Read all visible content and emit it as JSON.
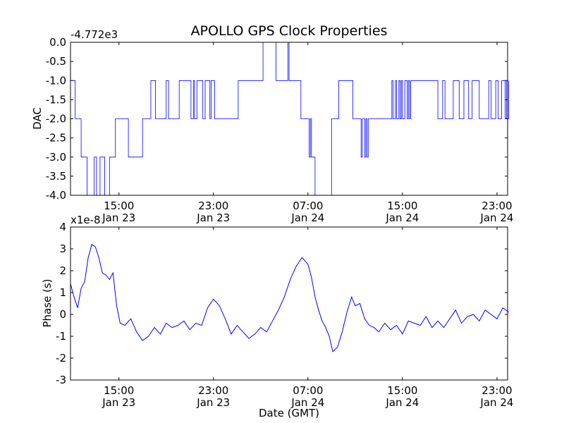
{
  "chart_data": [
    {
      "type": "line",
      "title": "APOLLO GPS Clock Properties",
      "ylabel": "DAC",
      "offset_label": "-4.772e3",
      "ylim": [
        -4.0,
        0.0
      ],
      "yticks": [
        "0.0",
        "-0.5",
        "-1.0",
        "-1.5",
        "-2.0",
        "-2.5",
        "-3.0",
        "-3.5",
        "-4.0"
      ],
      "xlim": [
        "Jan 23 10:55",
        "Jan 24 23:55"
      ],
      "xticks": [
        {
          "time": "15:00",
          "date": "Jan 23"
        },
        {
          "time": "23:00",
          "date": "Jan 23"
        },
        {
          "time": "07:00",
          "date": "Jan 24"
        },
        {
          "time": "15:00",
          "date": "Jan 24"
        },
        {
          "time": "23:00",
          "date": "Jan 24"
        }
      ],
      "color": "#0000ff",
      "series": [
        {
          "x_hours": [
            10.9,
            11.3,
            11.4,
            11.8,
            12.1,
            12.3,
            12.6,
            12.9,
            13.0,
            13.1,
            13.3,
            13.4,
            13.7,
            13.8,
            14.0,
            14.2,
            14.3,
            14.5,
            14.7,
            15.0,
            15.4,
            15.8,
            16.4,
            17.0,
            17.1,
            17.6,
            17.7,
            18.1,
            19.0,
            19.2,
            19.9,
            20.1,
            20.5,
            21.1,
            21.3,
            21.4,
            21.6,
            21.9,
            22.1,
            22.3,
            22.7,
            22.8,
            23.1,
            25.1,
            27.2,
            28.3,
            28.4,
            29.3,
            29.4,
            30.3,
            30.4,
            30.9,
            31.1,
            31.2,
            31.3,
            31.4,
            31.5,
            31.6,
            31.7,
            33.0,
            33.1,
            33.6,
            33.8,
            34.8,
            35.2,
            35.5,
            35.6,
            35.8,
            35.9,
            36.0,
            36.1,
            38.1,
            38.2,
            38.4,
            38.5,
            38.7,
            38.8,
            38.9,
            39.0,
            39.2,
            39.3,
            39.4,
            39.5,
            39.6,
            39.7,
            40.2,
            42.0,
            42.4,
            42.6,
            43.3,
            43.8,
            44.2,
            44.6,
            44.9,
            45.5,
            46.3,
            46.5,
            46.9,
            47.1,
            47.4,
            47.7,
            47.8,
            47.9,
            48.0
          ],
          "y": [
            -1.0,
            -2.0,
            -2.0,
            -3.0,
            -3.0,
            -4.0,
            -4.0,
            -3.0,
            -3.0,
            -4.0,
            -4.0,
            -3.0,
            -3.0,
            -4.0,
            -4.0,
            -3.0,
            -3.0,
            -3.0,
            -2.0,
            -2.0,
            -2.0,
            -3.0,
            -3.0,
            -2.0,
            -2.0,
            -2.0,
            -1.0,
            -2.0,
            -1.0,
            -2.0,
            -2.0,
            -1.0,
            -1.0,
            -2.0,
            -1.0,
            -2.0,
            -1.0,
            -1.0,
            -2.0,
            -1.0,
            -2.0,
            -1.0,
            -2.0,
            -1.0,
            0.0,
            -1.0,
            -1.0,
            0.0,
            -1.0,
            -1.0,
            -2.0,
            -2.0,
            -3.0,
            -2.0,
            -3.0,
            -3.0,
            -3.0,
            -4.0,
            -4.0,
            -2.0,
            -2.0,
            -1.0,
            -1.0,
            -2.0,
            -2.0,
            -3.0,
            -2.0,
            -3.0,
            -2.0,
            -3.0,
            -2.0,
            -1.0,
            -2.0,
            -1.0,
            -2.0,
            -1.0,
            -2.0,
            -1.0,
            -2.0,
            -1.0,
            -1.0,
            -2.0,
            -1.0,
            -2.0,
            -1.0,
            -1.0,
            -2.0,
            -1.0,
            -2.0,
            -1.0,
            -2.0,
            -1.0,
            -2.0,
            -1.0,
            -2.0,
            -1.0,
            -2.0,
            -1.0,
            -2.0,
            -1.0,
            -2.0,
            -1.0,
            -2.0,
            -1.0
          ]
        }
      ]
    },
    {
      "type": "line",
      "title": "",
      "ylabel": "Phase (s)",
      "xlabel": "Date (GMT)",
      "scale_label": "x1e-8",
      "ylim": [
        -3,
        4
      ],
      "yticks": [
        "4",
        "3",
        "2",
        "1",
        "0",
        "-1",
        "-2",
        "-3"
      ],
      "xlim": [
        "Jan 23 10:55",
        "Jan 24 23:55"
      ],
      "xticks": [
        {
          "time": "15:00",
          "date": "Jan 23"
        },
        {
          "time": "23:00",
          "date": "Jan 23"
        },
        {
          "time": "07:00",
          "date": "Jan 24"
        },
        {
          "time": "15:00",
          "date": "Jan 24"
        },
        {
          "time": "23:00",
          "date": "Jan 24"
        }
      ],
      "color": "#0000ff",
      "series": [
        {
          "x_hours": [
            10.9,
            11.2,
            11.5,
            11.8,
            12.1,
            12.4,
            12.7,
            13.0,
            13.3,
            13.6,
            13.9,
            14.2,
            14.5,
            14.8,
            15.1,
            15.5,
            16.0,
            16.5,
            17.0,
            17.5,
            18.0,
            18.5,
            19.0,
            19.5,
            20.0,
            20.5,
            21.0,
            21.5,
            22.0,
            22.5,
            23.0,
            23.5,
            24.0,
            24.5,
            25.0,
            25.5,
            26.0,
            26.5,
            27.0,
            27.5,
            28.0,
            28.5,
            29.0,
            29.5,
            30.0,
            30.5,
            31.0,
            31.3,
            31.6,
            31.9,
            32.2,
            32.5,
            32.8,
            33.1,
            33.5,
            33.9,
            34.3,
            34.7,
            35.0,
            35.4,
            35.8,
            36.2,
            36.6,
            37.0,
            37.5,
            38.0,
            38.5,
            39.0,
            39.5,
            40.0,
            40.5,
            41.0,
            41.5,
            42.0,
            42.5,
            43.0,
            43.5,
            44.0,
            44.5,
            45.0,
            45.5,
            46.0,
            46.5,
            47.0,
            47.5,
            48.0
          ],
          "y": [
            1.4,
            0.8,
            0.3,
            1.2,
            1.5,
            2.6,
            3.2,
            3.1,
            2.6,
            1.9,
            1.8,
            1.6,
            1.9,
            0.4,
            -0.4,
            -0.5,
            -0.2,
            -0.8,
            -1.2,
            -1.0,
            -0.6,
            -0.9,
            -0.4,
            -0.6,
            -0.5,
            -0.3,
            -0.7,
            -0.4,
            -0.5,
            0.3,
            0.7,
            0.4,
            -0.2,
            -0.9,
            -0.5,
            -0.8,
            -1.1,
            -0.9,
            -0.6,
            -0.8,
            -0.3,
            0.2,
            0.8,
            1.6,
            2.2,
            2.6,
            2.3,
            1.7,
            0.8,
            0.2,
            -0.3,
            -0.6,
            -1.0,
            -1.7,
            -1.5,
            -0.8,
            0.1,
            0.8,
            0.4,
            0.5,
            -0.2,
            -0.5,
            -0.6,
            -0.8,
            -0.4,
            -0.7,
            -0.5,
            -0.9,
            -0.3,
            -0.4,
            -0.5,
            -0.1,
            -0.6,
            -0.3,
            -0.6,
            -0.2,
            0.2,
            -0.4,
            -0.1,
            0.0,
            -0.3,
            0.2,
            0.0,
            -0.2,
            0.3,
            0.1
          ]
        }
      ]
    }
  ]
}
